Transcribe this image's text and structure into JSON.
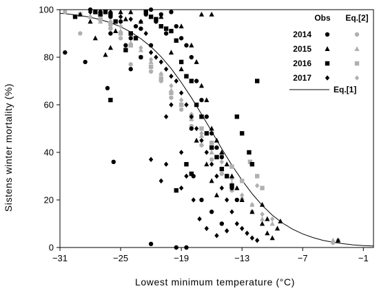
{
  "chart_data": {
    "type": "scatter",
    "title": "",
    "xlabel": "Lowest minimum temperature (°C)",
    "ylabel": "Sistens winter mortality (%)",
    "xlim": [
      -31,
      0
    ],
    "ylim": [
      0,
      100
    ],
    "xticks": [
      -31,
      -25,
      -19,
      -13,
      -7,
      -1
    ],
    "yticks": [
      0,
      20,
      40,
      60,
      80,
      100
    ],
    "xtick_labels": [
      "−31",
      "−25",
      "−19",
      "−13",
      "−7",
      "−1"
    ],
    "ytick_labels": [
      "0",
      "20",
      "40",
      "60",
      "80",
      "100"
    ],
    "grid": false,
    "legend_placement": "top-right",
    "legend": {
      "col_obs": "Obs",
      "col_eq2": "Eq.[2]",
      "line_label": "Eq.[1]",
      "rows": [
        "2014",
        "2015",
        "2016",
        "2017"
      ]
    },
    "colors": {
      "obs": "#000000",
      "eq2": "#b0b0b0",
      "curve": "#000000"
    },
    "series": [
      {
        "name": "2014",
        "kind": "obs",
        "marker": "circle",
        "points": [
          [
            -30.5,
            82
          ],
          [
            -28.5,
            78
          ],
          [
            -28,
            100
          ],
          [
            -26.3,
            67
          ],
          [
            -25.7,
            36
          ],
          [
            -27,
            99
          ],
          [
            -26,
            97
          ],
          [
            -25,
            95
          ],
          [
            -24.5,
            85
          ],
          [
            -24,
            88
          ],
          [
            -23,
            92
          ],
          [
            -22.5,
            98
          ],
          [
            -22,
            100
          ],
          [
            -21.5,
            95
          ],
          [
            -21,
            98
          ],
          [
            -20,
            99
          ],
          [
            -20.5,
            90
          ],
          [
            -19.5,
            93
          ],
          [
            -19,
            88
          ],
          [
            -18.5,
            85
          ],
          [
            -18,
            80
          ],
          [
            -17.5,
            70
          ],
          [
            -17,
            62
          ],
          [
            -16.5,
            55
          ],
          [
            -16,
            48
          ],
          [
            -15.5,
            42
          ],
          [
            -15,
            38
          ],
          [
            -14.5,
            30
          ],
          [
            -14,
            25
          ],
          [
            -13.5,
            20
          ],
          [
            -18,
            50
          ],
          [
            -17.8,
            30
          ],
          [
            -17,
            20
          ],
          [
            -16,
            15
          ],
          [
            -15,
            10
          ],
          [
            -19.5,
            0
          ],
          [
            -18.5,
            0
          ],
          [
            -22,
            1.5
          ],
          [
            -23,
            80
          ],
          [
            -22,
            85
          ],
          [
            -24,
            75
          ],
          [
            -26,
            90
          ],
          [
            -23.5,
            93
          ]
        ]
      },
      {
        "name": "2015",
        "kind": "obs",
        "marker": "triangle",
        "points": [
          [
            -29,
            98
          ],
          [
            -28,
            95
          ],
          [
            -27.5,
            88
          ],
          [
            -26.5,
            81
          ],
          [
            -26,
            84
          ],
          [
            -25.5,
            91
          ],
          [
            -25,
            99
          ],
          [
            -24.5,
            96
          ],
          [
            -24,
            99
          ],
          [
            -23,
            95
          ],
          [
            -21,
            97
          ],
          [
            -19,
            93
          ],
          [
            -18,
            85
          ],
          [
            -17,
            98
          ],
          [
            -16,
            98
          ],
          [
            -17.5,
            78
          ],
          [
            -17,
            68
          ],
          [
            -16.5,
            62
          ],
          [
            -16,
            50
          ],
          [
            -15.5,
            45
          ],
          [
            -15,
            40
          ],
          [
            -14.5,
            35
          ],
          [
            -14,
            30
          ],
          [
            -13.5,
            25
          ],
          [
            -13,
            20
          ],
          [
            -12,
            15
          ],
          [
            -11,
            10
          ],
          [
            -10.5,
            6
          ],
          [
            -10,
            4
          ],
          [
            -9.5,
            8
          ],
          [
            -11,
            18
          ],
          [
            -10.5,
            12
          ],
          [
            -9.2,
            11
          ],
          [
            -3.5,
            3
          ],
          [
            -17.5,
            45
          ],
          [
            -16.5,
            35
          ],
          [
            -16,
            28
          ],
          [
            -15.5,
            22
          ],
          [
            -19,
            75
          ],
          [
            -20,
            82
          ]
        ]
      },
      {
        "name": "2016",
        "kind": "obs",
        "marker": "square",
        "points": [
          [
            -29.5,
            97
          ],
          [
            -27.5,
            99
          ],
          [
            -27,
            98
          ],
          [
            -26.5,
            99
          ],
          [
            -26,
            98
          ],
          [
            -25.5,
            95
          ],
          [
            -24,
            90
          ],
          [
            -23.5,
            88
          ],
          [
            -22.5,
            99
          ],
          [
            -22,
            97
          ],
          [
            -21.5,
            96
          ],
          [
            -21,
            93
          ],
          [
            -20.5,
            92
          ],
          [
            -20,
            91
          ],
          [
            -19.5,
            87
          ],
          [
            -19,
            78
          ],
          [
            -18.5,
            72
          ],
          [
            -18,
            70
          ],
          [
            -17.5,
            60
          ],
          [
            -17,
            55
          ],
          [
            -16.5,
            48
          ],
          [
            -16,
            42
          ],
          [
            -15.5,
            38
          ],
          [
            -15,
            33
          ],
          [
            -14.5,
            30
          ],
          [
            -14,
            26
          ],
          [
            -13.5,
            55
          ],
          [
            -13,
            48
          ],
          [
            -12.3,
            40
          ],
          [
            -12,
            35
          ],
          [
            -11.5,
            70
          ],
          [
            -19.5,
            24
          ],
          [
            -18,
            31
          ],
          [
            -18.5,
            35
          ],
          [
            -26,
            62
          ],
          [
            -24.5,
            83
          ]
        ]
      },
      {
        "name": "2017",
        "kind": "obs",
        "marker": "diamond",
        "points": [
          [
            -28,
            99
          ],
          [
            -26,
            99
          ],
          [
            -25,
            97
          ],
          [
            -24,
            96
          ],
          [
            -23,
            95
          ],
          [
            -22.5,
            90
          ],
          [
            -22,
            82
          ],
          [
            -21.5,
            80
          ],
          [
            -21,
            78
          ],
          [
            -20.5,
            75
          ],
          [
            -20,
            72
          ],
          [
            -19.5,
            70
          ],
          [
            -19,
            65
          ],
          [
            -18.5,
            60
          ],
          [
            -18,
            55
          ],
          [
            -17.5,
            50
          ],
          [
            -17,
            45
          ],
          [
            -16.5,
            40
          ],
          [
            -16,
            35
          ],
          [
            -15.5,
            30
          ],
          [
            -15,
            25
          ],
          [
            -14.5,
            20
          ],
          [
            -14,
            15
          ],
          [
            -13.5,
            10
          ],
          [
            -13,
            8
          ],
          [
            -12.5,
            6
          ],
          [
            -12,
            4
          ],
          [
            -11.5,
            3
          ],
          [
            -20,
            60
          ],
          [
            -20.5,
            55
          ],
          [
            -19,
            40
          ],
          [
            -18.5,
            30
          ],
          [
            -17.8,
            20
          ],
          [
            -17.2,
            12
          ],
          [
            -16.5,
            8
          ],
          [
            -15.5,
            5
          ],
          [
            -14.5,
            7
          ],
          [
            -22,
            37
          ],
          [
            -21,
            28
          ],
          [
            -20.5,
            35
          ],
          [
            -19,
            25
          ]
        ]
      },
      {
        "name": "2014",
        "kind": "eq2",
        "marker": "circle",
        "points": [
          [
            -30.5,
            99
          ],
          [
            -29,
            90
          ],
          [
            -27,
            96
          ],
          [
            -26,
            92
          ],
          [
            -25,
            88
          ],
          [
            -24,
            77
          ],
          [
            -23,
            80
          ],
          [
            -22,
            74
          ],
          [
            -21,
            70
          ],
          [
            -20,
            63
          ],
          [
            -19,
            58
          ],
          [
            -18,
            51
          ],
          [
            -17,
            43
          ],
          [
            -16,
            37
          ],
          [
            -15,
            31
          ],
          [
            -14,
            24
          ],
          [
            -13,
            20
          ],
          [
            -12,
            15
          ],
          [
            -4,
            2
          ],
          [
            -3.5,
            3
          ]
        ]
      },
      {
        "name": "2015",
        "kind": "eq2",
        "marker": "triangle",
        "points": [
          [
            -28,
            97
          ],
          [
            -27,
            95
          ],
          [
            -26,
            93
          ],
          [
            -25,
            91
          ],
          [
            -24,
            86
          ],
          [
            -23,
            83
          ],
          [
            -22,
            78
          ],
          [
            -21,
            73
          ],
          [
            -20,
            66
          ],
          [
            -19,
            60
          ],
          [
            -18,
            54
          ],
          [
            -17,
            47
          ],
          [
            -16,
            40
          ],
          [
            -15,
            33
          ],
          [
            -14,
            27
          ],
          [
            -13,
            21
          ],
          [
            -12,
            18
          ],
          [
            -11,
            12
          ],
          [
            -10,
            10
          ],
          [
            -4,
            3
          ]
        ]
      },
      {
        "name": "2016",
        "kind": "eq2",
        "marker": "square",
        "points": [
          [
            -29,
            98
          ],
          [
            -27,
            96
          ],
          [
            -26,
            94
          ],
          [
            -25,
            90
          ],
          [
            -24,
            85
          ],
          [
            -23,
            80
          ],
          [
            -22,
            76
          ],
          [
            -21,
            71
          ],
          [
            -20,
            65
          ],
          [
            -19,
            60
          ],
          [
            -18,
            55
          ],
          [
            -17,
            50
          ],
          [
            -16,
            44
          ],
          [
            -15,
            39
          ],
          [
            -14,
            34
          ],
          [
            -13,
            28
          ],
          [
            -12.2,
            36
          ],
          [
            -11.5,
            30
          ],
          [
            -11,
            25
          ]
        ]
      },
      {
        "name": "2017",
        "kind": "eq2",
        "marker": "diamond",
        "points": [
          [
            -28,
            97
          ],
          [
            -26,
            95
          ],
          [
            -25,
            93
          ],
          [
            -24,
            89
          ],
          [
            -23,
            84
          ],
          [
            -22,
            79
          ],
          [
            -21,
            73
          ],
          [
            -20,
            68
          ],
          [
            -19,
            62
          ],
          [
            -18,
            56
          ],
          [
            -17,
            48
          ],
          [
            -16,
            42
          ],
          [
            -15,
            36
          ],
          [
            -14,
            29
          ],
          [
            -13,
            22
          ],
          [
            -12,
            18
          ],
          [
            -11,
            14
          ],
          [
            -10,
            12
          ],
          [
            -11.5,
            26
          ]
        ]
      }
    ],
    "curve": {
      "name": "Eq.[1]",
      "x": [
        -31,
        -30,
        -29,
        -28,
        -27,
        -26,
        -25,
        -24,
        -23,
        -22,
        -21,
        -20,
        -19,
        -18,
        -17,
        -16,
        -15,
        -14,
        -13,
        -12,
        -11,
        -10,
        -9,
        -8,
        -7,
        -6,
        -5,
        -4,
        -3,
        -2,
        -1,
        0
      ],
      "y": [
        98.5,
        98.1,
        97.5,
        96.8,
        95.8,
        94.5,
        92.8,
        90.6,
        87.8,
        84.4,
        80.2,
        75.2,
        69.4,
        63.0,
        56.0,
        48.8,
        41.5,
        34.6,
        28.3,
        22.6,
        17.7,
        13.6,
        10.3,
        7.7,
        5.7,
        4.2,
        3.0,
        2.2,
        1.6,
        1.1,
        0.8,
        0.6
      ]
    }
  }
}
